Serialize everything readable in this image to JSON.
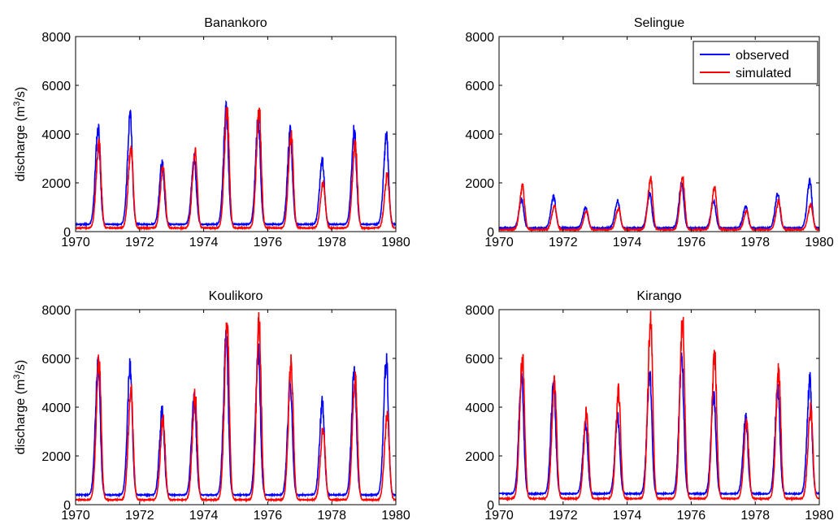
{
  "colors": {
    "observed": "#0000ff",
    "simulated": "#ff0000",
    "axis": "#000000"
  },
  "legend": {
    "placement": "top-right",
    "panel": 1
  },
  "chart_data": [
    {
      "type": "line",
      "title": "Banankoro",
      "ylabel": "discharge (m³/s)",
      "ylabel_parts": [
        "discharge (m",
        "3",
        "/s)"
      ],
      "xlim": [
        1970,
        1980
      ],
      "ylim": [
        0,
        8000
      ],
      "xticks": [
        1970,
        1972,
        1974,
        1976,
        1978,
        1980
      ],
      "yticks": [
        0,
        2000,
        4000,
        6000,
        8000
      ],
      "series": [
        {
          "name": "observed",
          "peaks": [
            4250,
            4750,
            2800,
            2950,
            4950,
            4550,
            4100,
            2900,
            4150,
            3900
          ],
          "base": 300
        },
        {
          "name": "simulated",
          "peaks": [
            3700,
            3500,
            2700,
            3350,
            4950,
            5050,
            4050,
            2000,
            3600,
            2300
          ],
          "base": 150
        }
      ]
    },
    {
      "type": "line",
      "title": "Selingue",
      "ylabel": "",
      "ylabel_parts": [
        "",
        "",
        ""
      ],
      "xlim": [
        1970,
        1980
      ],
      "ylim": [
        0,
        8000
      ],
      "xticks": [
        1970,
        1972,
        1974,
        1976,
        1978,
        1980
      ],
      "yticks": [
        0,
        2000,
        4000,
        6000,
        8000
      ],
      "series": [
        {
          "name": "observed",
          "peaks": [
            1300,
            1450,
            1000,
            1250,
            1550,
            2000,
            1250,
            1050,
            1550,
            2050
          ],
          "base": 150
        },
        {
          "name": "simulated",
          "peaks": [
            1850,
            1050,
            850,
            950,
            2200,
            2150,
            1800,
            850,
            1250,
            1100
          ],
          "base": 80
        }
      ]
    },
    {
      "type": "line",
      "title": "Koulikoro",
      "ylabel": "discharge (m³/s)",
      "ylabel_parts": [
        "discharge (m",
        "3",
        "/s)"
      ],
      "xlim": [
        1970,
        1980
      ],
      "ylim": [
        0,
        8000
      ],
      "xticks": [
        1970,
        1972,
        1974,
        1976,
        1978,
        1980
      ],
      "yticks": [
        0,
        2000,
        4000,
        6000,
        8000
      ],
      "series": [
        {
          "name": "observed",
          "peaks": [
            5850,
            5700,
            3850,
            4300,
            6800,
            6300,
            5000,
            4150,
            5500,
            5900
          ],
          "base": 400
        },
        {
          "name": "simulated",
          "peaks": [
            5900,
            4750,
            3550,
            4500,
            7400,
            7400,
            5850,
            3150,
            5250,
            3700
          ],
          "base": 200
        }
      ]
    },
    {
      "type": "line",
      "title": "Kirango",
      "ylabel": "",
      "ylabel_parts": [
        "",
        "",
        ""
      ],
      "xlim": [
        1970,
        1980
      ],
      "ylim": [
        0,
        8000
      ],
      "xticks": [
        1970,
        1972,
        1974,
        1976,
        1978,
        1980
      ],
      "yticks": [
        0,
        2000,
        4000,
        6000,
        8000
      ],
      "series": [
        {
          "name": "observed",
          "peaks": [
            5200,
            5000,
            3300,
            3550,
            5350,
            5950,
            4500,
            3550,
            4750,
            5050
          ],
          "base": 450
        },
        {
          "name": "simulated",
          "peaks": [
            6050,
            4950,
            3750,
            4650,
            7700,
            7650,
            6100,
            3350,
            5450,
            3900
          ],
          "base": 250
        }
      ]
    }
  ]
}
